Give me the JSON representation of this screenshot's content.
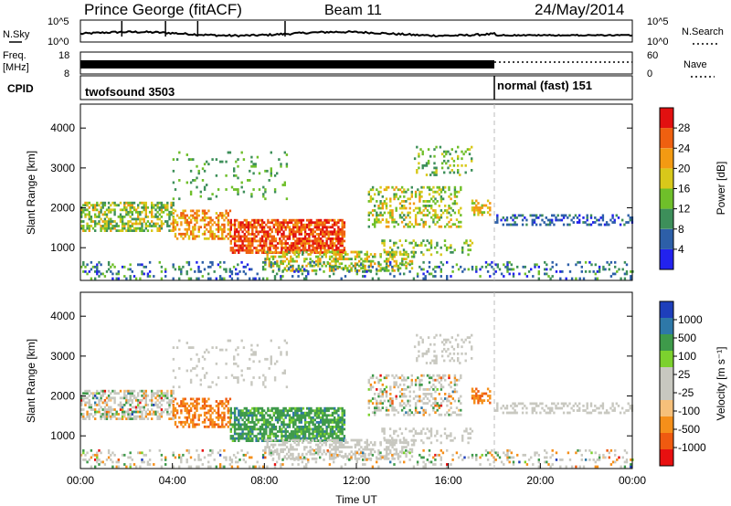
{
  "header": {
    "station": "Prince George (fitACF)",
    "beam": "Beam 11",
    "date": "24/May/2014"
  },
  "noise_panel": {
    "left_label": "N.Sky",
    "right_label": "N.Search",
    "left_ticks": [
      "10^5",
      "10^0"
    ],
    "right_ticks": [
      "10^5",
      "10^0"
    ]
  },
  "freq_panel": {
    "left_label_1": "Freq.",
    "left_label_2": "[MHz]",
    "right_label": "Nave",
    "left_ticks": [
      "18",
      "8"
    ],
    "right_ticks": [
      "60",
      "0"
    ]
  },
  "cpid": {
    "label": "CPID",
    "segments": [
      {
        "name": "twofsound 3503",
        "start_hour": 0,
        "end_hour": 18
      },
      {
        "name": "normal (fast) 151",
        "start_hour": 18,
        "end_hour": 24
      }
    ]
  },
  "colors": {
    "power": [
      "#2222ee",
      "#2d5fa8",
      "#3d8f5a",
      "#6fbf2a",
      "#d8c81a",
      "#f39a12",
      "#ef6010",
      "#e21010"
    ],
    "velocity": [
      "#e81010",
      "#ef5a10",
      "#f58f1a",
      "#f6c07a",
      "#c8c8c0",
      "#c8c8c0",
      "#7cd12e",
      "#3e9a4a",
      "#2e78a8",
      "#1e3fbb"
    ]
  },
  "chart_data": [
    {
      "type": "heatmap",
      "name": "Power",
      "xlabel": "",
      "ylabel": "Slant Range [km]",
      "xlim": [
        0,
        24
      ],
      "ylim": [
        180,
        4600
      ],
      "y_ticks": [
        "1000",
        "2000",
        "3000",
        "4000"
      ],
      "colorbar_label": "Power [dB]",
      "colorbar_ticks": [
        "4",
        "8",
        "12",
        "16",
        "20",
        "24",
        "28"
      ],
      "colorbar_range": [
        0,
        32
      ],
      "mode_change_hour": 18
    },
    {
      "type": "heatmap",
      "name": "Velocity",
      "xlabel": "Time UT",
      "ylabel": "Slant Range [km]",
      "xlim": [
        0,
        24
      ],
      "ylim": [
        180,
        4600
      ],
      "x_ticks": [
        "00:00",
        "04:00",
        "08:00",
        "12:00",
        "16:00",
        "20:00",
        "00:00"
      ],
      "y_ticks": [
        "1000",
        "2000",
        "3000",
        "4000"
      ],
      "colorbar_label": "Velocity [m s⁻¹]",
      "colorbar_ticks": [
        "1000",
        "500",
        "100",
        "25",
        "-25",
        "-100",
        "-500",
        "-1000"
      ],
      "mode_change_hour": 18
    }
  ]
}
